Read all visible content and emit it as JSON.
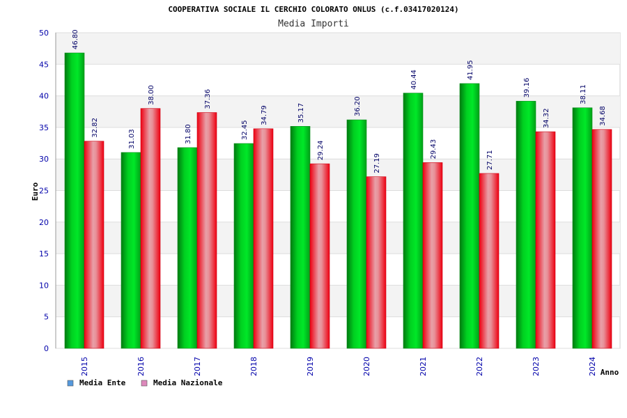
{
  "chart_data": {
    "type": "bar",
    "title": "COOPERATIVA SOCIALE IL CERCHIO COLORATO ONLUS (c.f.03417020124)",
    "subtitle": "Media Importi",
    "xlabel": "Anno",
    "ylabel": "Euro",
    "ylim": [
      0,
      50
    ],
    "yticks": [
      0,
      5,
      10,
      15,
      20,
      25,
      30,
      35,
      40,
      45,
      50
    ],
    "grid": true,
    "legend_position": "bottom-left",
    "categories": [
      "2015",
      "2016",
      "2017",
      "2018",
      "2019",
      "2020",
      "2021",
      "2022",
      "2023",
      "2024"
    ],
    "series": [
      {
        "name": "Media Ente",
        "legend_color": "#5599dd",
        "bar_color": "#00cc22",
        "values": [
          46.8,
          31.03,
          31.8,
          32.45,
          35.17,
          36.2,
          40.44,
          41.95,
          39.16,
          38.11
        ],
        "labels": [
          "46.80",
          "31.03",
          "31.80",
          "32.45",
          "35.17",
          "36.20",
          "40.44",
          "41.95",
          "39.16",
          "38.11"
        ]
      },
      {
        "name": "Media Nazionale",
        "legend_color": "#dd88bb",
        "bar_color": "#ee1122",
        "values": [
          32.82,
          38.0,
          37.36,
          34.79,
          29.24,
          27.19,
          29.43,
          27.71,
          34.32,
          34.68
        ],
        "labels": [
          "32.82",
          "38.00",
          "37.36",
          "34.79",
          "29.24",
          "27.19",
          "29.43",
          "27.71",
          "34.32",
          "34.68"
        ]
      }
    ]
  }
}
